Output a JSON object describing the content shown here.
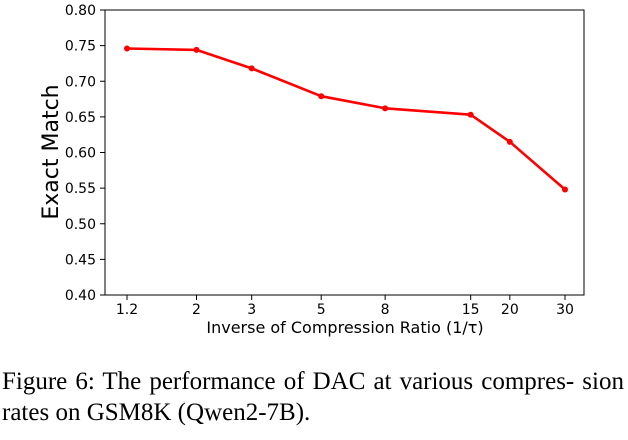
{
  "chart_data": {
    "type": "line",
    "x": [
      1.2,
      2,
      3,
      5,
      8,
      15,
      20,
      30
    ],
    "x_tick_labels": [
      "1.2",
      "2",
      "3",
      "5",
      "8",
      "15",
      "20",
      "30"
    ],
    "x_scale": "log",
    "values": [
      0.746,
      0.744,
      0.718,
      0.679,
      0.662,
      0.653,
      0.615,
      0.548
    ],
    "xlabel": "Inverse of Compression Ratio (1/τ)",
    "ylabel": "Exact Match",
    "ylim": [
      0.4,
      0.8
    ],
    "y_ticks": [
      "0.40",
      "0.45",
      "0.50",
      "0.55",
      "0.60",
      "0.65",
      "0.70",
      "0.75",
      "0.80"
    ],
    "line_color": "#ff0000",
    "grid": false,
    "legend": "none"
  },
  "caption": {
    "text": "Figure 6: The performance of DAC at various compres- sion rates on GSM8K (Qwen2-7B)."
  }
}
